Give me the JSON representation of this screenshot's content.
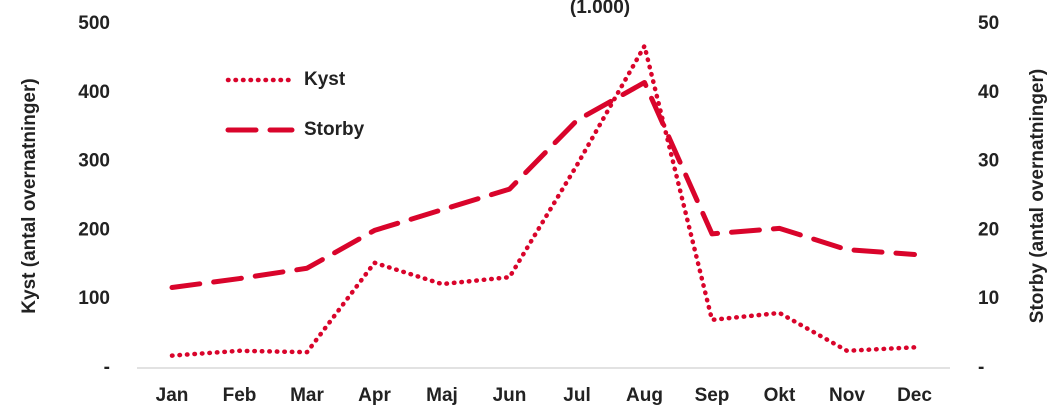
{
  "chart_data": {
    "type": "line",
    "title": "(1.000)",
    "ylabel": "Kyst (antal overnatninger)",
    "y2label": "Storby (antal overnatninger)",
    "categories": [
      "Jan",
      "Feb",
      "Mar",
      "Apr",
      "Maj",
      "Jun",
      "Jul",
      "Aug",
      "Sep",
      "Okt",
      "Nov",
      "Dec"
    ],
    "series": [
      {
        "name": "Kyst",
        "color": "#d9042b",
        "style": "dotted",
        "values": [
          18,
          25,
          23,
          153,
          122,
          132,
          295,
          468,
          70,
          80,
          25,
          30
        ]
      },
      {
        "name": "Storby",
        "color": "#d9042b",
        "style": "dashed",
        "axis": "y2",
        "values": [
          11.7,
          13,
          14.5,
          20,
          23,
          26,
          36,
          41.5,
          19.5,
          20.3,
          17.2,
          16.5
        ]
      }
    ],
    "ylim": [
      0,
      500
    ],
    "yticks": [
      {
        "value": 0,
        "label": "-"
      },
      100,
      200,
      300,
      400,
      500
    ],
    "y2lim": [
      0,
      50
    ],
    "y2ticks": [
      {
        "value": 0,
        "label": "-"
      },
      10,
      20,
      30,
      40,
      50
    ],
    "legend": "upper left",
    "grid": false
  }
}
